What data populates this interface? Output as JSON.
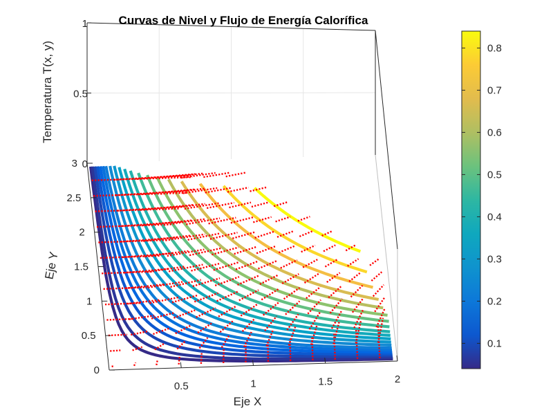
{
  "chart_data": {
    "type": "contour3d",
    "title": "Curvas de Nivel y Flujo de Energía Calorífica",
    "xlabel": "Eje X",
    "ylabel": "Eje Y",
    "zlabel": "Temperatura T(x, y)",
    "xlim": [
      0,
      2
    ],
    "ylim": [
      0,
      3
    ],
    "zlim": [
      0,
      1
    ],
    "x_ticks": [
      "0.5",
      "1",
      "1.5",
      "2"
    ],
    "y_ticks": [
      "0",
      "0.5",
      "1",
      "1.5",
      "2",
      "2.5",
      "3"
    ],
    "z_ticks": [
      "0",
      "0.5",
      "1"
    ],
    "levels": [
      0.04,
      0.06,
      0.09,
      0.12,
      0.15,
      0.18,
      0.21,
      0.25,
      0.29,
      0.33,
      0.37,
      0.41,
      0.46,
      0.51,
      0.56,
      0.61,
      0.66,
      0.72,
      0.78,
      0.84
    ],
    "colormap": "parula",
    "colorbar": {
      "range": [
        0.04,
        0.84
      ],
      "ticks": [
        "0.1",
        "0.2",
        "0.3",
        "0.4",
        "0.5",
        "0.6",
        "0.7",
        "0.8"
      ]
    },
    "quiver": {
      "color": "#ff0000",
      "style": "dotted",
      "description": "heat flux arrows"
    },
    "grid": true
  }
}
